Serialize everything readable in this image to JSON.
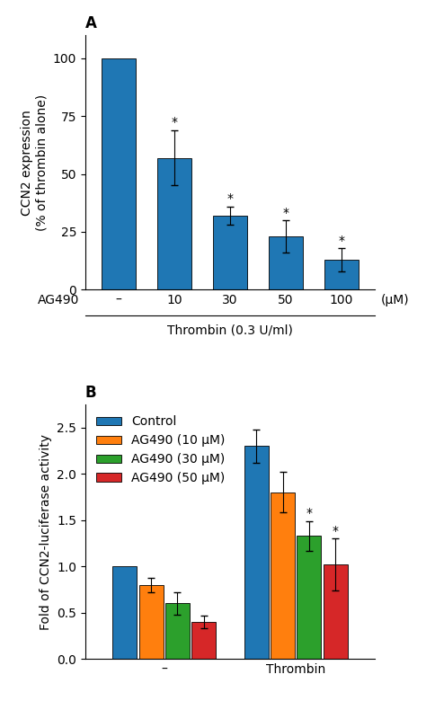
{
  "chart_data": [
    {
      "type": "bar",
      "title": "A",
      "categories": [
        "–",
        "10",
        "30",
        "50",
        "100"
      ],
      "values": [
        100,
        57,
        32,
        23,
        13
      ],
      "errors": [
        0,
        12,
        4,
        7,
        5
      ],
      "xlabel": "Thrombin (0.3 U/ml)",
      "ylabel": "CCN2 expression\n(% of thrombin alone)",
      "ylim": [
        0,
        110
      ],
      "yticks": [
        0,
        25,
        50,
        75,
        100
      ],
      "annotations": [
        {
          "text": "AG490"
        },
        {
          "text": "(μM)"
        },
        {
          "text": "*",
          "category": "10"
        },
        {
          "text": "*",
          "category": "30"
        },
        {
          "text": "*",
          "category": "50"
        },
        {
          "text": "*",
          "category": "100"
        }
      ]
    },
    {
      "type": "bar",
      "title": "B",
      "categories": [
        "–",
        "Thrombin"
      ],
      "series": [
        {
          "name": "Control",
          "values": [
            1.0,
            2.3
          ],
          "errors": [
            0.0,
            0.18
          ]
        },
        {
          "name": "AG490 (10 μM)",
          "values": [
            0.8,
            1.8
          ],
          "errors": [
            0.08,
            0.22
          ]
        },
        {
          "name": "AG490 (30 μM)",
          "values": [
            0.6,
            1.33
          ],
          "errors": [
            0.12,
            0.16
          ]
        },
        {
          "name": "AG490 (50 μM)",
          "values": [
            0.4,
            1.02
          ],
          "errors": [
            0.07,
            0.28
          ]
        }
      ],
      "ylabel": "Fold of CCN2-luciferase activity",
      "ylim": [
        0,
        2.75
      ],
      "yticks": [
        0.0,
        0.5,
        1.0,
        1.5,
        2.0,
        2.5
      ],
      "legend": "upper left",
      "annotations": [
        {
          "text": "*",
          "category": "Thrombin",
          "series": "AG490 (30 μM)"
        },
        {
          "text": "*",
          "category": "Thrombin",
          "series": "AG490 (50 μM)"
        }
      ]
    }
  ]
}
